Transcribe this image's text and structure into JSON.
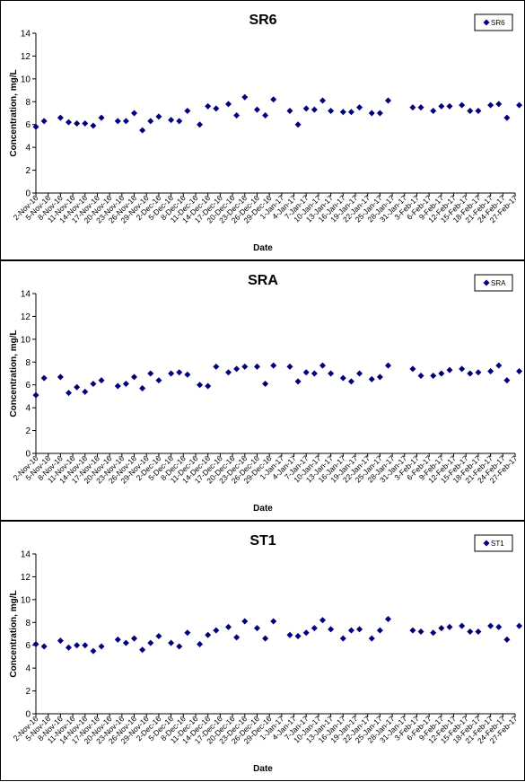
{
  "marker_color": "#00007a",
  "chart_data": [
    {
      "type": "scatter",
      "title": "SR6",
      "xlabel": "Date",
      "ylabel": "Concentration, mg/L",
      "ylim": [
        0,
        14
      ],
      "yticks": [
        0,
        2,
        4,
        6,
        8,
        10,
        12,
        14
      ],
      "x_range": [
        "2016-11-02",
        "2017-02-27"
      ],
      "grid": false,
      "legend": "top-right",
      "series": [
        {
          "name": "SR6",
          "points": [
            [
              "2016-11-02",
              5.8
            ],
            [
              "2016-11-04",
              6.3
            ],
            [
              "2016-11-08",
              6.6
            ],
            [
              "2016-11-10",
              6.2
            ],
            [
              "2016-11-12",
              6.1
            ],
            [
              "2016-11-14",
              6.1
            ],
            [
              "2016-11-16",
              5.9
            ],
            [
              "2016-11-18",
              6.6
            ],
            [
              "2016-11-22",
              6.3
            ],
            [
              "2016-11-24",
              6.3
            ],
            [
              "2016-11-26",
              7.0
            ],
            [
              "2016-11-28",
              5.5
            ],
            [
              "2016-11-30",
              6.3
            ],
            [
              "2016-12-02",
              6.7
            ],
            [
              "2016-12-05",
              6.4
            ],
            [
              "2016-12-07",
              6.3
            ],
            [
              "2016-12-09",
              7.2
            ],
            [
              "2016-12-12",
              6.0
            ],
            [
              "2016-12-14",
              7.6
            ],
            [
              "2016-12-16",
              7.4
            ],
            [
              "2016-12-19",
              7.8
            ],
            [
              "2016-12-21",
              6.8
            ],
            [
              "2016-12-23",
              8.4
            ],
            [
              "2016-12-26",
              7.3
            ],
            [
              "2016-12-28",
              6.8
            ],
            [
              "2016-12-30",
              8.2
            ],
            [
              "2017-01-03",
              7.2
            ],
            [
              "2017-01-05",
              6.0
            ],
            [
              "2017-01-07",
              7.4
            ],
            [
              "2017-01-09",
              7.3
            ],
            [
              "2017-01-11",
              8.1
            ],
            [
              "2017-01-13",
              7.2
            ],
            [
              "2017-01-16",
              7.1
            ],
            [
              "2017-01-18",
              7.1
            ],
            [
              "2017-01-20",
              7.5
            ],
            [
              "2017-01-23",
              7.0
            ],
            [
              "2017-01-25",
              7.0
            ],
            [
              "2017-01-27",
              8.1
            ],
            [
              "2017-02-02",
              7.5
            ],
            [
              "2017-02-04",
              7.5
            ],
            [
              "2017-02-07",
              7.2
            ],
            [
              "2017-02-09",
              7.6
            ],
            [
              "2017-02-11",
              7.6
            ],
            [
              "2017-02-14",
              7.7
            ],
            [
              "2017-02-16",
              7.2
            ],
            [
              "2017-02-18",
              7.2
            ],
            [
              "2017-02-21",
              7.7
            ],
            [
              "2017-02-23",
              7.8
            ],
            [
              "2017-02-25",
              6.6
            ],
            [
              "2017-02-28",
              7.7
            ]
          ]
        }
      ]
    },
    {
      "type": "scatter",
      "title": "SRA",
      "xlabel": "Date",
      "ylabel": "Concentration, mg/L",
      "ylim": [
        0,
        14
      ],
      "yticks": [
        0,
        2,
        4,
        6,
        8,
        10,
        12,
        14
      ],
      "x_range": [
        "2016-11-02",
        "2017-02-27"
      ],
      "grid": false,
      "legend": "top-right",
      "series": [
        {
          "name": "SRA",
          "points": [
            [
              "2016-11-02",
              5.1
            ],
            [
              "2016-11-04",
              6.6
            ],
            [
              "2016-11-08",
              6.7
            ],
            [
              "2016-11-10",
              5.3
            ],
            [
              "2016-11-12",
              5.8
            ],
            [
              "2016-11-14",
              5.4
            ],
            [
              "2016-11-16",
              6.1
            ],
            [
              "2016-11-18",
              6.4
            ],
            [
              "2016-11-22",
              5.9
            ],
            [
              "2016-11-24",
              6.1
            ],
            [
              "2016-11-26",
              6.7
            ],
            [
              "2016-11-28",
              5.7
            ],
            [
              "2016-11-30",
              7.0
            ],
            [
              "2016-12-02",
              6.4
            ],
            [
              "2016-12-05",
              7.0
            ],
            [
              "2016-12-07",
              7.1
            ],
            [
              "2016-12-09",
              6.9
            ],
            [
              "2016-12-12",
              6.0
            ],
            [
              "2016-12-14",
              5.9
            ],
            [
              "2016-12-16",
              7.6
            ],
            [
              "2016-12-19",
              7.1
            ],
            [
              "2016-12-21",
              7.4
            ],
            [
              "2016-12-23",
              7.6
            ],
            [
              "2016-12-26",
              7.6
            ],
            [
              "2016-12-28",
              6.1
            ],
            [
              "2016-12-30",
              7.7
            ],
            [
              "2017-01-03",
              7.6
            ],
            [
              "2017-01-05",
              6.3
            ],
            [
              "2017-01-07",
              7.1
            ],
            [
              "2017-01-09",
              7.0
            ],
            [
              "2017-01-11",
              7.7
            ],
            [
              "2017-01-13",
              7.0
            ],
            [
              "2017-01-16",
              6.6
            ],
            [
              "2017-01-18",
              6.3
            ],
            [
              "2017-01-20",
              7.0
            ],
            [
              "2017-01-23",
              6.5
            ],
            [
              "2017-01-25",
              6.7
            ],
            [
              "2017-01-27",
              7.7
            ],
            [
              "2017-02-02",
              7.4
            ],
            [
              "2017-02-04",
              6.8
            ],
            [
              "2017-02-07",
              6.8
            ],
            [
              "2017-02-09",
              7.0
            ],
            [
              "2017-02-11",
              7.3
            ],
            [
              "2017-02-14",
              7.4
            ],
            [
              "2017-02-16",
              7.0
            ],
            [
              "2017-02-18",
              7.1
            ],
            [
              "2017-02-21",
              7.2
            ],
            [
              "2017-02-23",
              7.7
            ],
            [
              "2017-02-25",
              6.4
            ],
            [
              "2017-02-28",
              7.2
            ]
          ]
        }
      ]
    },
    {
      "type": "scatter",
      "title": "ST1",
      "xlabel": "Date",
      "ylabel": "Concentration, mg/L",
      "ylim": [
        0,
        14
      ],
      "yticks": [
        0,
        2,
        4,
        6,
        8,
        10,
        12,
        14
      ],
      "x_range": [
        "2016-11-02",
        "2017-02-27"
      ],
      "grid": false,
      "legend": "top-right",
      "series": [
        {
          "name": "ST1",
          "points": [
            [
              "2016-11-02",
              6.1
            ],
            [
              "2016-11-04",
              5.9
            ],
            [
              "2016-11-08",
              6.4
            ],
            [
              "2016-11-10",
              5.8
            ],
            [
              "2016-11-12",
              6.0
            ],
            [
              "2016-11-14",
              6.0
            ],
            [
              "2016-11-16",
              5.5
            ],
            [
              "2016-11-18",
              5.9
            ],
            [
              "2016-11-22",
              6.5
            ],
            [
              "2016-11-24",
              6.2
            ],
            [
              "2016-11-26",
              6.6
            ],
            [
              "2016-11-28",
              5.6
            ],
            [
              "2016-11-30",
              6.2
            ],
            [
              "2016-12-02",
              6.8
            ],
            [
              "2016-12-05",
              6.2
            ],
            [
              "2016-12-07",
              5.9
            ],
            [
              "2016-12-09",
              7.1
            ],
            [
              "2016-12-12",
              6.1
            ],
            [
              "2016-12-14",
              6.9
            ],
            [
              "2016-12-16",
              7.3
            ],
            [
              "2016-12-19",
              7.6
            ],
            [
              "2016-12-21",
              6.7
            ],
            [
              "2016-12-23",
              8.1
            ],
            [
              "2016-12-26",
              7.5
            ],
            [
              "2016-12-28",
              6.6
            ],
            [
              "2016-12-30",
              8.1
            ],
            [
              "2017-01-03",
              6.9
            ],
            [
              "2017-01-05",
              6.8
            ],
            [
              "2017-01-07",
              7.1
            ],
            [
              "2017-01-09",
              7.5
            ],
            [
              "2017-01-11",
              8.2
            ],
            [
              "2017-01-13",
              7.4
            ],
            [
              "2017-01-16",
              6.6
            ],
            [
              "2017-01-18",
              7.3
            ],
            [
              "2017-01-20",
              7.4
            ],
            [
              "2017-01-23",
              6.6
            ],
            [
              "2017-01-25",
              7.3
            ],
            [
              "2017-01-27",
              8.3
            ],
            [
              "2017-02-02",
              7.3
            ],
            [
              "2017-02-04",
              7.2
            ],
            [
              "2017-02-07",
              7.1
            ],
            [
              "2017-02-09",
              7.5
            ],
            [
              "2017-02-11",
              7.6
            ],
            [
              "2017-02-14",
              7.7
            ],
            [
              "2017-02-16",
              7.2
            ],
            [
              "2017-02-18",
              7.2
            ],
            [
              "2017-02-21",
              7.7
            ],
            [
              "2017-02-23",
              7.6
            ],
            [
              "2017-02-25",
              6.5
            ],
            [
              "2017-02-28",
              7.7
            ]
          ]
        }
      ]
    }
  ],
  "x_tick_labels": [
    "2-Nov-16",
    "5-Nov-16",
    "8-Nov-16",
    "11-Nov-16",
    "14-Nov-16",
    "17-Nov-16",
    "20-Nov-16",
    "23-Nov-16",
    "26-Nov-16",
    "29-Nov-16",
    "2-Dec-16",
    "5-Dec-16",
    "8-Dec-16",
    "11-Dec-16",
    "14-Dec-16",
    "17-Dec-16",
    "20-Dec-16",
    "23-Dec-16",
    "26-Dec-16",
    "29-Dec-16",
    "1-Jan-17",
    "4-Jan-17",
    "7-Jan-17",
    "10-Jan-17",
    "13-Jan-17",
    "16-Jan-17",
    "19-Jan-17",
    "22-Jan-17",
    "25-Jan-17",
    "28-Jan-17",
    "31-Jan-17",
    "3-Feb-17",
    "6-Feb-17",
    "9-Feb-17",
    "12-Feb-17",
    "15-Feb-17",
    "18-Feb-17",
    "21-Feb-17",
    "24-Feb-17",
    "27-Feb-17"
  ]
}
